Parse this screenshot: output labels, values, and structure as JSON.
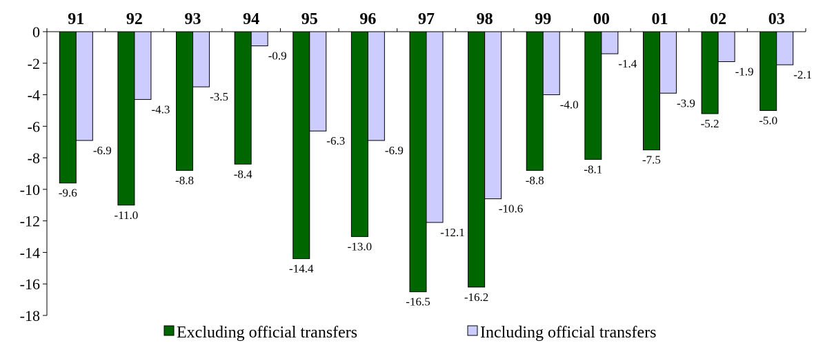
{
  "chart_data": {
    "type": "bar",
    "categories": [
      "91",
      "92",
      "93",
      "94",
      "95",
      "96",
      "97",
      "98",
      "99",
      "00",
      "01",
      "02",
      "03"
    ],
    "series": [
      {
        "name": "Excluding official transfers",
        "color": "#006600",
        "values": [
          -9.6,
          -11.0,
          -8.8,
          -8.4,
          -14.4,
          -13.0,
          -16.5,
          -16.2,
          -8.8,
          -8.1,
          -7.5,
          -5.2,
          -5.0
        ],
        "labels": [
          "-9.6",
          "-11.0",
          "-8.8",
          "-8.4",
          "-14.4",
          "-13.0",
          "-16.5",
          "-16.2",
          "-8.8",
          "-8.1",
          "-7.5",
          "-5.2",
          "-5.0"
        ]
      },
      {
        "name": "Including official transfers",
        "color": "#ccccff",
        "values": [
          -6.9,
          -4.3,
          -3.5,
          -0.9,
          -6.3,
          -6.9,
          -12.1,
          -10.6,
          -4.0,
          -1.4,
          -3.9,
          -1.9,
          -2.1
        ],
        "labels": [
          "-6.9",
          "-4.3",
          "-3.5",
          "-0.9",
          "-6.3",
          "-6.9",
          "-12.1",
          "-10.6",
          "-4.0",
          "-1.4",
          "-3.9",
          "-1.9",
          "-2.1"
        ]
      }
    ],
    "ylim": [
      -18,
      0
    ],
    "yticks": [
      "0",
      "-2",
      "-4",
      "-6",
      "-8",
      "-10",
      "-12",
      "-14",
      "-16",
      "-18"
    ],
    "category_axis_position": "top",
    "grid": false,
    "legend_position": "bottom",
    "title": "",
    "xlabel": "",
    "ylabel": ""
  }
}
